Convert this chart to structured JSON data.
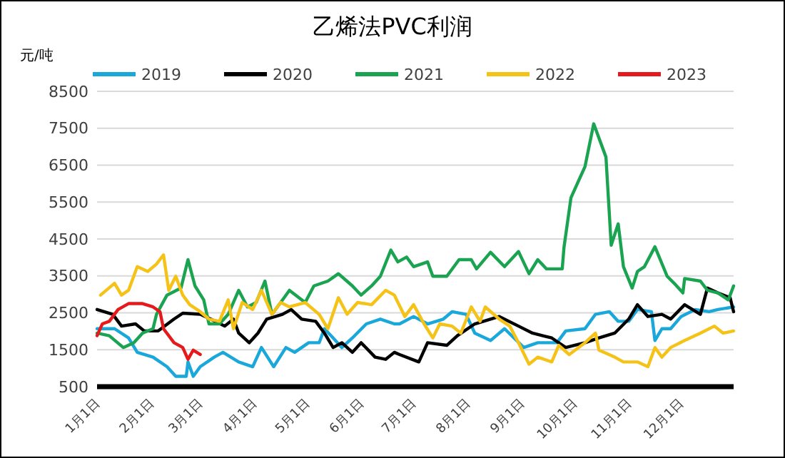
{
  "chart_data": {
    "type": "line",
    "title": "乙烯法PVC利润",
    "ylabel": "元/吨",
    "legend": "top",
    "grid": "y",
    "line_style": "solid",
    "marker": "none",
    "xlim": [
      "--01-01",
      "--12-31"
    ],
    "xticks": [
      {
        "value": "--01-01",
        "label": "1月1日"
      },
      {
        "value": "--02-01",
        "label": "2月1日"
      },
      {
        "value": "--03-01",
        "label": "3月1日"
      },
      {
        "value": "--04-01",
        "label": "4月1日"
      },
      {
        "value": "--05-01",
        "label": "5月1日"
      },
      {
        "value": "--06-01",
        "label": "6月1日"
      },
      {
        "value": "--07-01",
        "label": "7月1日"
      },
      {
        "value": "--08-01",
        "label": "8月1日"
      },
      {
        "value": "--09-01",
        "label": "9月1日"
      },
      {
        "value": "--10-01",
        "label": "10月1日"
      },
      {
        "value": "--11-01",
        "label": "11月1日"
      },
      {
        "value": "--12-01",
        "label": "12月1日"
      }
    ],
    "ylim": [
      500,
      8500
    ],
    "yticks": [
      500,
      1500,
      2500,
      3500,
      4500,
      5500,
      6500,
      7500,
      8500
    ],
    "series": [
      {
        "name": "2019",
        "color": "#1aa7d9",
        "x": [
          "--01-01",
          "--01-11",
          "--01-19",
          "--01-24",
          "--02-02",
          "--02-10",
          "--02-15",
          "--02-21",
          "--02-22",
          "--02-25",
          "--03-01",
          "--03-09",
          "--03-14",
          "--03-23",
          "--03-31",
          "--04-05",
          "--04-12",
          "--04-19",
          "--04-24",
          "--05-02",
          "--05-08",
          "--05-11",
          "--05-16",
          "--05-21",
          "--05-27",
          "--06-04",
          "--06-12",
          "--06-20",
          "--06-23",
          "--07-01",
          "--07-09",
          "--07-18",
          "--07-23",
          "--07-31",
          "--08-05",
          "--08-14",
          "--08-22",
          "--09-02",
          "--09-10",
          "--09-21",
          "--09-26",
          "--10-07",
          "--10-13",
          "--10-21",
          "--10-26",
          "--11-01",
          "--11-06",
          "--11-14",
          "--11-16",
          "--11-20",
          "--11-25",
          "--12-01",
          "--12-09",
          "--12-17",
          "--12-22",
          "--12-31"
        ],
        "values": [
          2070,
          2070,
          1820,
          1430,
          1300,
          1040,
          780,
          780,
          1170,
          780,
          1040,
          1300,
          1430,
          1170,
          1040,
          1560,
          1040,
          1560,
          1430,
          1690,
          1690,
          2070,
          1820,
          1560,
          1820,
          2200,
          2330,
          2200,
          2200,
          2400,
          2200,
          2330,
          2530,
          2460,
          1950,
          1750,
          2070,
          1560,
          1690,
          1690,
          2010,
          2070,
          2460,
          2530,
          2270,
          2270,
          2590,
          2530,
          1750,
          2070,
          2070,
          2400,
          2590,
          2530,
          2590,
          2660
        ]
      },
      {
        "name": "2020",
        "color": "#000000",
        "x": [
          "--01-01",
          "--01-10",
          "--01-15",
          "--01-23",
          "--01-28",
          "--02-05",
          "--02-14",
          "--02-19",
          "--03-01",
          "--03-07",
          "--03-15",
          "--03-20",
          "--03-23",
          "--03-29",
          "--04-03",
          "--04-08",
          "--04-17",
          "--04-22",
          "--04-28",
          "--05-06",
          "--05-11",
          "--05-16",
          "--05-21",
          "--05-27",
          "--06-01",
          "--06-09",
          "--06-15",
          "--06-20",
          "--06-23",
          "--07-04",
          "--07-09",
          "--07-20",
          "--07-26",
          "--08-05",
          "--08-19",
          "--08-30",
          "--09-07",
          "--09-18",
          "--09-26",
          "--10-07",
          "--10-15",
          "--10-24",
          "--11-01",
          "--11-06",
          "--11-12",
          "--11-20",
          "--11-25",
          "--12-03",
          "--12-12",
          "--12-16",
          "--12-22",
          "--12-29",
          "--12-31"
        ],
        "values": [
          2590,
          2460,
          2140,
          2200,
          2010,
          2010,
          2330,
          2490,
          2460,
          2330,
          2140,
          2330,
          1950,
          1690,
          1950,
          2330,
          2460,
          2590,
          2330,
          2270,
          1950,
          1560,
          1690,
          1430,
          1690,
          1300,
          1240,
          1430,
          1370,
          1170,
          1690,
          1620,
          1880,
          2200,
          2400,
          2140,
          1950,
          1820,
          1560,
          1690,
          1820,
          1950,
          2330,
          2720,
          2400,
          2460,
          2330,
          2720,
          2460,
          3170,
          3040,
          2910,
          2530
        ]
      },
      {
        "name": "2021",
        "color": "#1aa350",
        "x": [
          "--01-01",
          "--01-08",
          "--01-16",
          "--01-22",
          "--01-27",
          "--02-02",
          "--02-04",
          "--02-10",
          "--02-18",
          "--02-22",
          "--02-26",
          "--03-03",
          "--03-06",
          "--03-12",
          "--03-17",
          "--03-23",
          "--03-28",
          "--04-02",
          "--04-07",
          "--04-11",
          "--04-16",
          "--04-21",
          "--04-30",
          "--05-05",
          "--05-13",
          "--05-19",
          "--05-27",
          "--06-01",
          "--06-07",
          "--06-12",
          "--06-18",
          "--06-22",
          "--06-27",
          "--07-01",
          "--07-09",
          "--07-12",
          "--07-20",
          "--07-27",
          "--08-03",
          "--08-06",
          "--08-14",
          "--08-22",
          "--08-30",
          "--09-05",
          "--09-10",
          "--09-15",
          "--09-24",
          "--09-25",
          "--09-29",
          "--10-07",
          "--10-12",
          "--10-19",
          "--10-22",
          "--10-26",
          "--10-29",
          "--11-03",
          "--11-06",
          "--11-10",
          "--11-16",
          "--11-23",
          "--11-27",
          "--12-02",
          "--12-03",
          "--12-12",
          "--12-16",
          "--12-22",
          "--12-28",
          "--12-31"
        ],
        "values": [
          1950,
          1880,
          1560,
          1690,
          1950,
          2070,
          2460,
          2980,
          3170,
          3940,
          3230,
          2850,
          2200,
          2200,
          2460,
          3110,
          2660,
          2780,
          3360,
          2460,
          2780,
          3110,
          2780,
          3230,
          3360,
          3560,
          3230,
          2980,
          3230,
          3490,
          4200,
          3880,
          4010,
          3750,
          3880,
          3490,
          3490,
          3940,
          3940,
          3690,
          4140,
          3750,
          4160,
          3560,
          3940,
          3690,
          3690,
          4270,
          5620,
          6460,
          7620,
          6720,
          4330,
          4910,
          3750,
          3170,
          3620,
          3750,
          4290,
          3490,
          3300,
          3040,
          3430,
          3360,
          3110,
          3040,
          2850,
          3230
        ]
      },
      {
        "name": "2022",
        "color": "#f5c218",
        "x": [
          "--01-03",
          "--01-11",
          "--01-15",
          "--01-19",
          "--01-24",
          "--01-30",
          "--02-04",
          "--02-08",
          "--02-11",
          "--02-15",
          "--02-19",
          "--02-23",
          "--03-01",
          "--03-06",
          "--03-12",
          "--03-17",
          "--03-20",
          "--03-25",
          "--03-31",
          "--04-05",
          "--04-11",
          "--04-16",
          "--04-21",
          "--04-30",
          "--05-08",
          "--05-13",
          "--05-19",
          "--05-24",
          "--05-30",
          "--06-07",
          "--06-15",
          "--06-20",
          "--06-26",
          "--07-01",
          "--07-07",
          "--07-12",
          "--07-16",
          "--07-23",
          "--07-28",
          "--08-03",
          "--08-08",
          "--08-11",
          "--08-19",
          "--08-25",
          "--08-30",
          "--09-05",
          "--09-10",
          "--09-18",
          "--09-22",
          "--09-28",
          "--10-07",
          "--10-13",
          "--10-15",
          "--10-24",
          "--10-29",
          "--11-06",
          "--11-12",
          "--11-16",
          "--11-20",
          "--11-25",
          "--12-03",
          "--12-12",
          "--12-20",
          "--12-25",
          "--12-31"
        ],
        "values": [
          2980,
          3300,
          2980,
          3110,
          3750,
          3620,
          3820,
          4070,
          3110,
          3490,
          2980,
          2720,
          2530,
          2330,
          2270,
          2850,
          2070,
          2780,
          2590,
          3110,
          2460,
          2780,
          2660,
          2780,
          2460,
          2070,
          2910,
          2460,
          2780,
          2720,
          3110,
          2980,
          2400,
          2720,
          2200,
          1820,
          2200,
          2140,
          1950,
          2660,
          2270,
          2660,
          2330,
          2140,
          1690,
          1110,
          1300,
          1170,
          1620,
          1370,
          1690,
          1950,
          1490,
          1300,
          1170,
          1170,
          1040,
          1560,
          1300,
          1560,
          1750,
          1950,
          2140,
          1950,
          2010
        ]
      },
      {
        "name": "2023",
        "color": "#e41a1c",
        "x": [
          "--01-01",
          "--01-04",
          "--01-08",
          "--01-13",
          "--01-19",
          "--01-27",
          "--02-02",
          "--02-06",
          "--02-08",
          "--02-14",
          "--02-19",
          "--02-22",
          "--02-25",
          "--03-01"
        ],
        "values": [
          1880,
          2200,
          2270,
          2590,
          2750,
          2750,
          2660,
          2530,
          2070,
          1690,
          1560,
          1240,
          1490,
          1370
        ]
      }
    ]
  }
}
